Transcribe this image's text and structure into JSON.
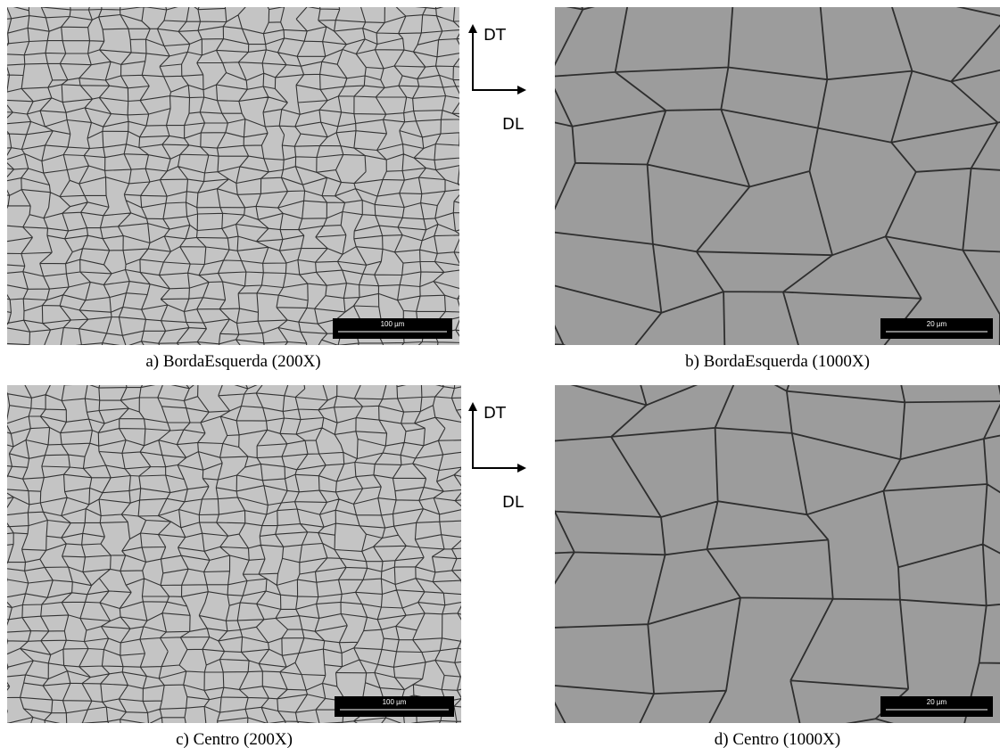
{
  "panels": [
    {
      "caption": "a) BordaEsquerda (200X)",
      "scale_bar": "100 µm"
    },
    {
      "caption": "b) BordaEsquerda (1000X)",
      "scale_bar": "20 µm"
    },
    {
      "caption": "c) Centro (200X)",
      "scale_bar": "100 µm"
    },
    {
      "caption": "d) Centro (1000X)",
      "scale_bar": "20 µm"
    }
  ],
  "axes": [
    {
      "vertical": "DT",
      "horizontal": "DL"
    },
    {
      "vertical": "DT",
      "horizontal": "DL"
    }
  ]
}
